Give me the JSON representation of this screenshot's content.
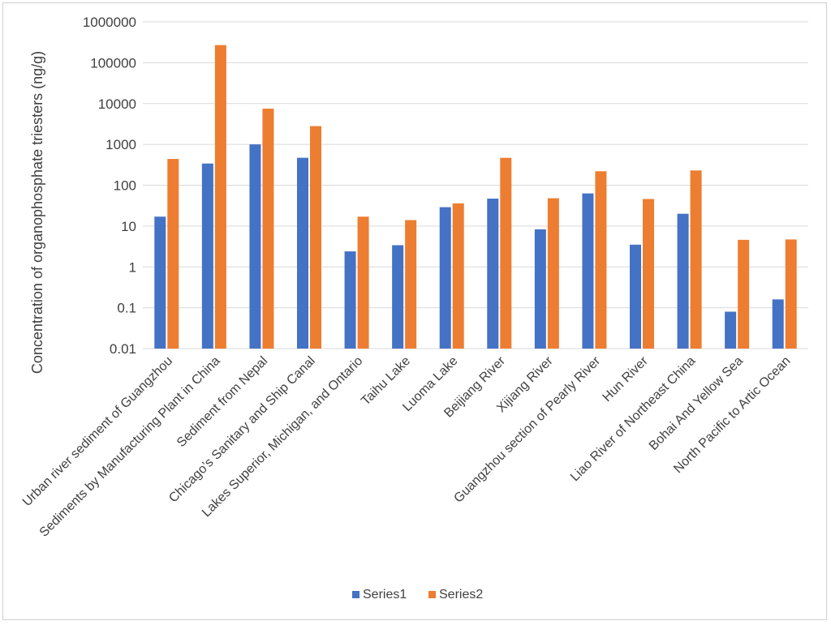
{
  "chart_data": {
    "type": "bar",
    "ylabel": "Concentration of  organophosphate triesters  (ng/g)",
    "yscale": "log",
    "ylim": [
      0.01,
      1000000
    ],
    "yticks": [
      "0.01",
      "0.1",
      "1",
      "10",
      "100",
      "1000",
      "10000",
      "100000",
      "1000000"
    ],
    "grid": true,
    "legend_position": "bottom",
    "categories": [
      "Urban river sediment of Guangzhou",
      "Sediments by Manufacturing Plant in China",
      "Sediment from Nepal",
      "Chicago’s Sanitary and Ship Canal",
      "Lakes Superior, Michigan, and Ontario",
      "Taihu Lake",
      "Luoma Lake",
      "Beijiang River",
      "Xijiang River",
      "Guangzhou section of Pearly River",
      "Hun River",
      "Liao River of Northeast China",
      "Bohai And Yellow Sea",
      "North Pacific to Artic Ocean"
    ],
    "series": [
      {
        "name": "Series1",
        "color": "#4472C4",
        "values": [
          17,
          340,
          1000,
          470,
          2.4,
          3.4,
          29,
          47,
          8.3,
          63,
          3.5,
          20,
          0.08,
          0.16
        ]
      },
      {
        "name": "Series2",
        "color": "#ED7D31",
        "values": [
          440,
          270000,
          7500,
          2800,
          17,
          14,
          36,
          470,
          48,
          220,
          46,
          230,
          4.6,
          4.7
        ]
      }
    ]
  }
}
